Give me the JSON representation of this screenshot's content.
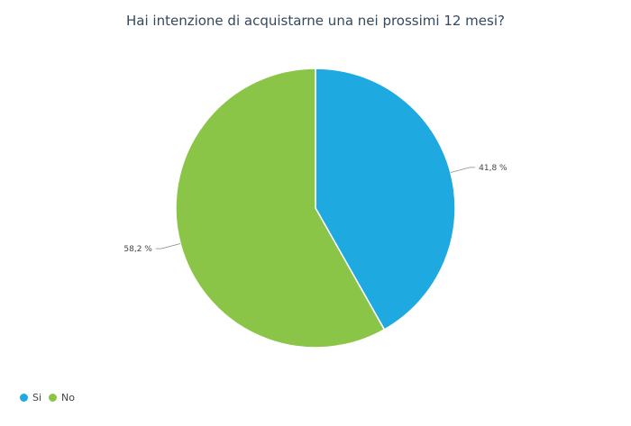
{
  "chart_data": {
    "type": "pie",
    "title": "Hai intenzione di acquistarne una nei prossimi 12 mesi?",
    "categories": [
      "Si",
      "No"
    ],
    "values": [
      41.8,
      58.2
    ],
    "value_labels": [
      "41,8 %",
      "58,2 %"
    ],
    "colors": [
      "#1ea9e1",
      "#8bc548"
    ],
    "start_angle": "12 o'clock",
    "direction": "clockwise",
    "legend_position": "bottom-left"
  }
}
